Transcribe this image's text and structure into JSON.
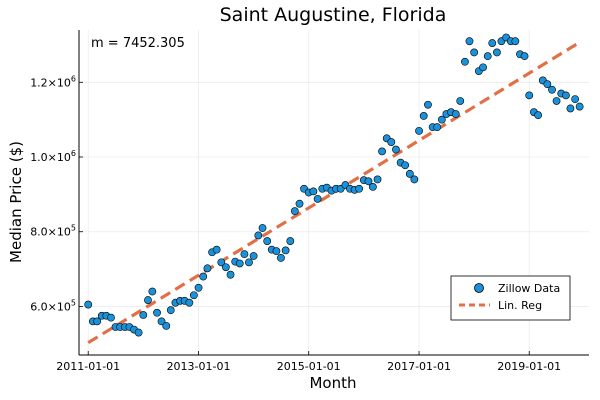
{
  "chart_data": {
    "type": "scatter",
    "title": "Saint Augustine, Florida",
    "xlabel": "Month",
    "ylabel": "Median Price ($)",
    "annotation": "m = 7452.305",
    "x_ticks": [
      "2011-01-01",
      "2013-01-01",
      "2015-01-01",
      "2017-01-01",
      "2019-01-01"
    ],
    "y_ticks": [
      {
        "value": 600000,
        "base": "6.0×10",
        "exp": "5"
      },
      {
        "value": 800000,
        "base": "8.0×10",
        "exp": "5"
      },
      {
        "value": 1000000,
        "base": "1.0×10",
        "exp": "6"
      },
      {
        "value": 1200000,
        "base": "1.2×10",
        "exp": "6"
      }
    ],
    "ylim": [
      470000,
      1340000
    ],
    "xlim": [
      "2010-11-01",
      "2020-02-01"
    ],
    "grid": true,
    "legend_position": "bottom-right",
    "colors": {
      "scatter": "#1a91d9",
      "regression": "#e26f46",
      "marker_edge": "#000000",
      "grid": "#ebebeb",
      "axis": "#000000"
    },
    "series": [
      {
        "name": "Zillow Data",
        "kind": "scatter",
        "x": [
          "2011-01-01",
          "2011-02-01",
          "2011-03-01",
          "2011-04-01",
          "2011-05-01",
          "2011-06-01",
          "2011-07-01",
          "2011-08-01",
          "2011-09-01",
          "2011-10-01",
          "2011-11-01",
          "2011-12-01",
          "2012-01-01",
          "2012-02-01",
          "2012-03-01",
          "2012-04-01",
          "2012-05-01",
          "2012-06-01",
          "2012-07-01",
          "2012-08-01",
          "2012-09-01",
          "2012-10-01",
          "2012-11-01",
          "2012-12-01",
          "2013-01-01",
          "2013-02-01",
          "2013-03-01",
          "2013-04-01",
          "2013-05-01",
          "2013-06-01",
          "2013-07-01",
          "2013-08-01",
          "2013-09-01",
          "2013-10-01",
          "2013-11-01",
          "2013-12-01",
          "2014-01-01",
          "2014-02-01",
          "2014-03-01",
          "2014-04-01",
          "2014-05-01",
          "2014-06-01",
          "2014-07-01",
          "2014-08-01",
          "2014-09-01",
          "2014-10-01",
          "2014-11-01",
          "2014-12-01",
          "2015-01-01",
          "2015-02-01",
          "2015-03-01",
          "2015-04-01",
          "2015-05-01",
          "2015-06-01",
          "2015-07-01",
          "2015-08-01",
          "2015-09-01",
          "2015-10-01",
          "2015-11-01",
          "2015-12-01",
          "2016-01-01",
          "2016-02-01",
          "2016-03-01",
          "2016-04-01",
          "2016-05-01",
          "2016-06-01",
          "2016-07-01",
          "2016-08-01",
          "2016-09-01",
          "2016-10-01",
          "2016-11-01",
          "2016-12-01",
          "2017-01-01",
          "2017-02-01",
          "2017-03-01",
          "2017-04-01",
          "2017-05-01",
          "2017-06-01",
          "2017-07-01",
          "2017-08-01",
          "2017-09-01",
          "2017-10-01",
          "2017-11-01",
          "2017-12-01",
          "2018-01-01",
          "2018-02-01",
          "2018-03-01",
          "2018-04-01",
          "2018-05-01",
          "2018-06-01",
          "2018-07-01",
          "2018-08-01",
          "2018-09-01",
          "2018-10-01",
          "2018-11-01",
          "2018-12-01",
          "2019-01-01",
          "2019-02-01",
          "2019-03-01",
          "2019-04-01",
          "2019-05-01",
          "2019-06-01",
          "2019-07-01",
          "2019-08-01",
          "2019-09-01",
          "2019-10-01",
          "2019-11-01",
          "2019-12-01"
        ],
        "y": [
          605000,
          560000,
          560000,
          575000,
          575000,
          570000,
          545000,
          545000,
          545000,
          545000,
          538000,
          530000,
          577000,
          617000,
          640000,
          583000,
          560000,
          548000,
          590000,
          610000,
          615000,
          615000,
          610000,
          630000,
          650000,
          680000,
          702000,
          745000,
          752000,
          718000,
          705000,
          685000,
          720000,
          715000,
          740000,
          718000,
          735000,
          790000,
          810000,
          775000,
          752000,
          748000,
          730000,
          750000,
          775000,
          855000,
          875000,
          915000,
          905000,
          908000,
          888000,
          915000,
          918000,
          910000,
          915000,
          915000,
          925000,
          915000,
          912000,
          915000,
          938000,
          935000,
          920000,
          940000,
          1015000,
          1050000,
          1040000,
          1020000,
          985000,
          978000,
          955000,
          940000,
          1070000,
          1110000,
          1140000,
          1080000,
          1080000,
          1100000,
          1115000,
          1120000,
          1115000,
          1150000,
          1255000,
          1310000,
          1280000,
          1230000,
          1240000,
          1270000,
          1305000,
          1280000,
          1310000,
          1320000,
          1310000,
          1310000,
          1275000,
          1270000,
          1165000,
          1120000,
          1112000,
          1205000,
          1195000,
          1180000,
          1150000,
          1170000,
          1165000,
          1130000,
          1155000,
          1135000
        ]
      },
      {
        "name": "Lin. Reg",
        "kind": "line",
        "x": [
          "2011-01-01",
          "2019-12-01"
        ],
        "y": [
          503000,
          1307000
        ]
      }
    ]
  }
}
